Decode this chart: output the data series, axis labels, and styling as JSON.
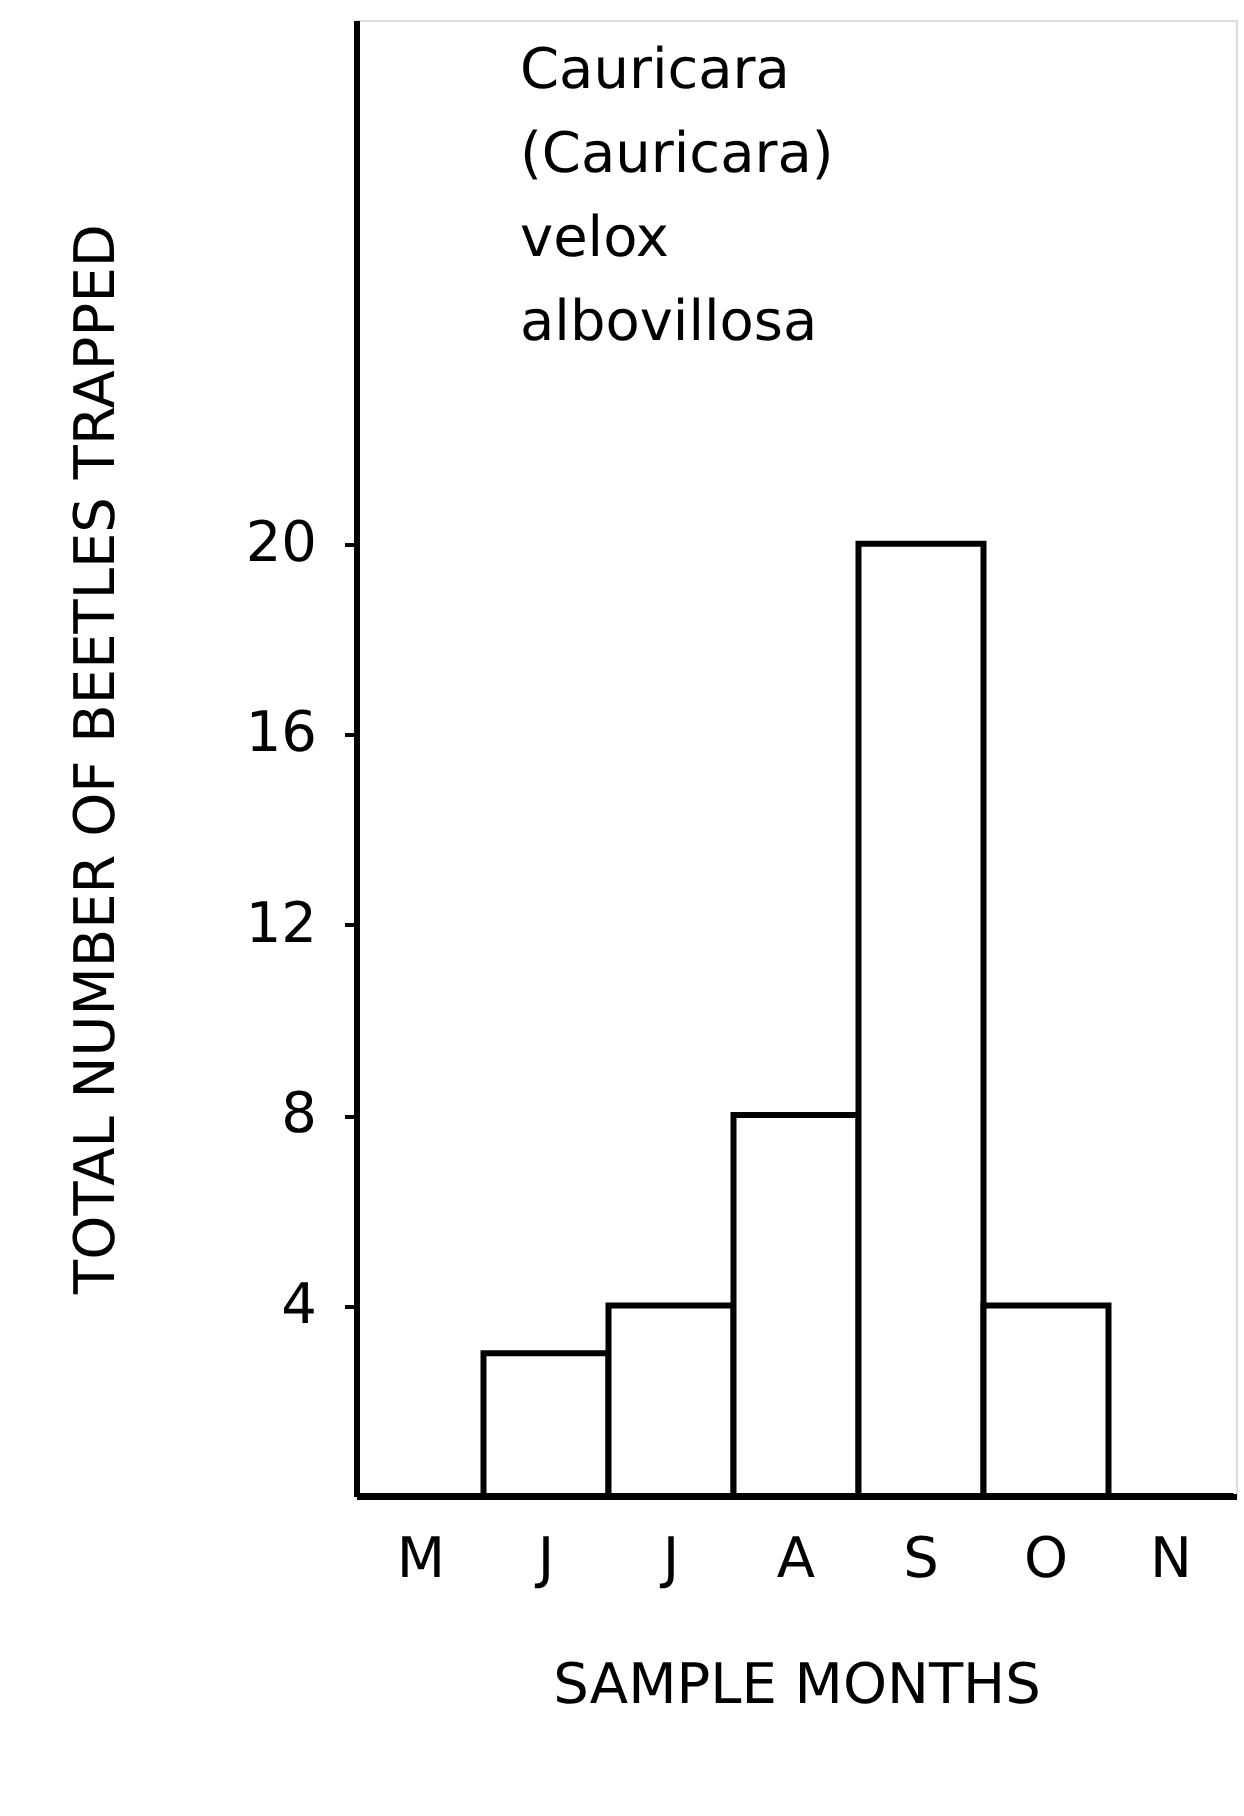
{
  "chart_data": {
    "type": "bar",
    "title": "Cauricara (Cauricara) velox albovillosa",
    "xlabel": "SAMPLE   MONTHS",
    "ylabel": "TOTAL  NUMBER  OF  BEETLES  TRAPPED",
    "categories": [
      "M",
      "J",
      "J",
      "A",
      "S",
      "O",
      "N"
    ],
    "values": [
      0,
      3,
      4,
      8,
      20,
      4,
      0
    ],
    "color": "#ffffff",
    "ylim": [
      0,
      31
    ],
    "yticks": [
      4,
      8,
      12,
      16,
      20
    ],
    "grid": false
  }
}
